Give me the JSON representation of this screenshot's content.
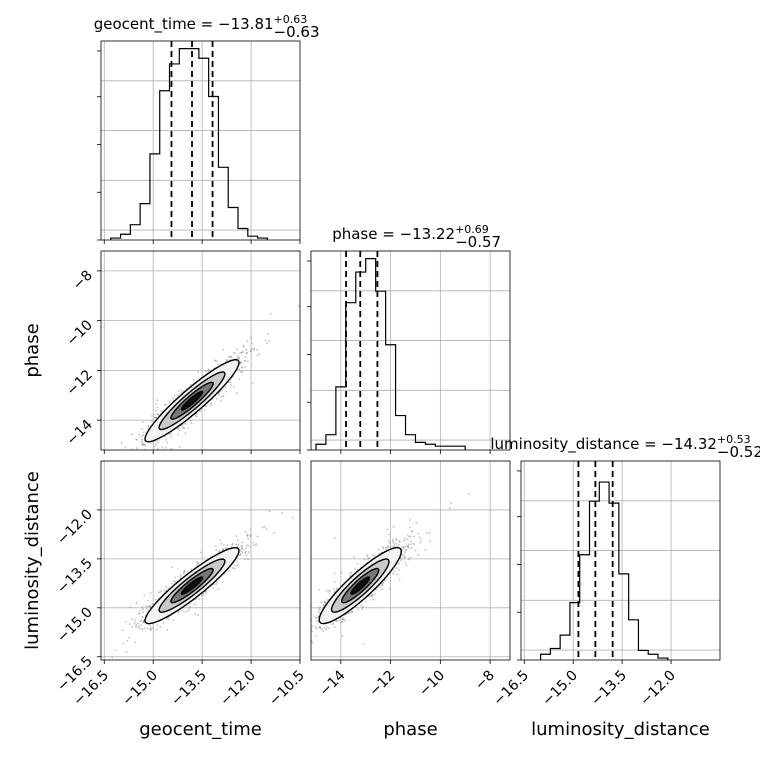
{
  "chart_data": {
    "type": "corner",
    "parameters": [
      "geocent_time",
      "phase",
      "luminosity_distance"
    ],
    "axis_labels": [
      "geocent_time",
      "phase",
      "luminosity_distance"
    ],
    "ranges": {
      "geocent_time": [
        -16.6,
        -10.5
      ],
      "phase": [
        -15.2,
        -7.2
      ],
      "luminosity_distance": [
        -16.6,
        -10.5
      ]
    },
    "ticks": {
      "geocent_time": [
        -16.5,
        -15.0,
        -13.5,
        -12.0,
        -10.5
      ],
      "phase": [
        -14,
        -12,
        -10,
        -8
      ],
      "luminosity_distance": [
        -16.5,
        -15.0,
        -13.5,
        -12.0
      ]
    },
    "tick_labels": {
      "geocent_time": [
        "−16.5",
        "−15.0",
        "−13.5",
        "−12.0",
        "−10.5"
      ],
      "phase": [
        "−14",
        "−12",
        "−10",
        "−8"
      ],
      "luminosity_distance": [
        "−16.5",
        "−15.0",
        "−13.5",
        "−12.0"
      ]
    },
    "titles": [
      {
        "name": "geocent_time",
        "median": "−13.81",
        "plus": "+0.63",
        "minus": "−0.63"
      },
      {
        "name": "phase",
        "median": "−13.22",
        "plus": "+0.69",
        "minus": "−0.57"
      },
      {
        "name": "luminosity_distance",
        "median": "−14.32",
        "plus": "+0.53",
        "minus": "−0.52"
      }
    ],
    "histograms": {
      "geocent_time": {
        "bin_edges": [
          -16.3,
          -16.0,
          -15.7,
          -15.4,
          -15.1,
          -14.8,
          -14.5,
          -14.2,
          -13.9,
          -13.6,
          -13.3,
          -13.0,
          -12.7,
          -12.4,
          -12.1,
          -11.8,
          -11.5
        ],
        "counts": [
          0.01,
          0.03,
          0.08,
          0.19,
          0.45,
          0.78,
          0.92,
          1.0,
          1.0,
          0.95,
          0.75,
          0.38,
          0.17,
          0.06,
          0.02,
          0.01
        ],
        "quantiles": [
          -14.44,
          -13.81,
          -13.18
        ]
      },
      "phase": {
        "bin_edges": [
          -15.0,
          -14.6,
          -14.2,
          -13.8,
          -13.4,
          -13.0,
          -12.6,
          -12.2,
          -11.8,
          -11.4,
          -11.0,
          -10.6,
          -10.2,
          -9.8,
          -9.4,
          -9.0
        ],
        "counts": [
          0.03,
          0.08,
          0.33,
          0.77,
          0.93,
          1.0,
          0.83,
          0.55,
          0.18,
          0.08,
          0.04,
          0.03,
          0.02,
          0.02,
          0.02
        ],
        "quantiles": [
          -13.79,
          -13.22,
          -12.53
        ]
      },
      "luminosity_distance": {
        "bin_edges": [
          -16.0,
          -15.7,
          -15.4,
          -15.1,
          -14.8,
          -14.5,
          -14.2,
          -13.9,
          -13.6,
          -13.3,
          -13.0,
          -12.7,
          -12.4,
          -12.1
        ],
        "counts": [
          0.03,
          0.06,
          0.13,
          0.3,
          0.55,
          0.83,
          0.93,
          0.82,
          0.45,
          0.21,
          0.05,
          0.03,
          0.01
        ],
        "quantiles": [
          -14.84,
          -14.32,
          -13.79
        ]
      }
    },
    "correlations": {
      "phase_vs_geocent_time": 0.93,
      "luminosity_distance_vs_geocent_time": 0.92,
      "luminosity_distance_vs_phase": 0.9
    },
    "grid": true
  }
}
